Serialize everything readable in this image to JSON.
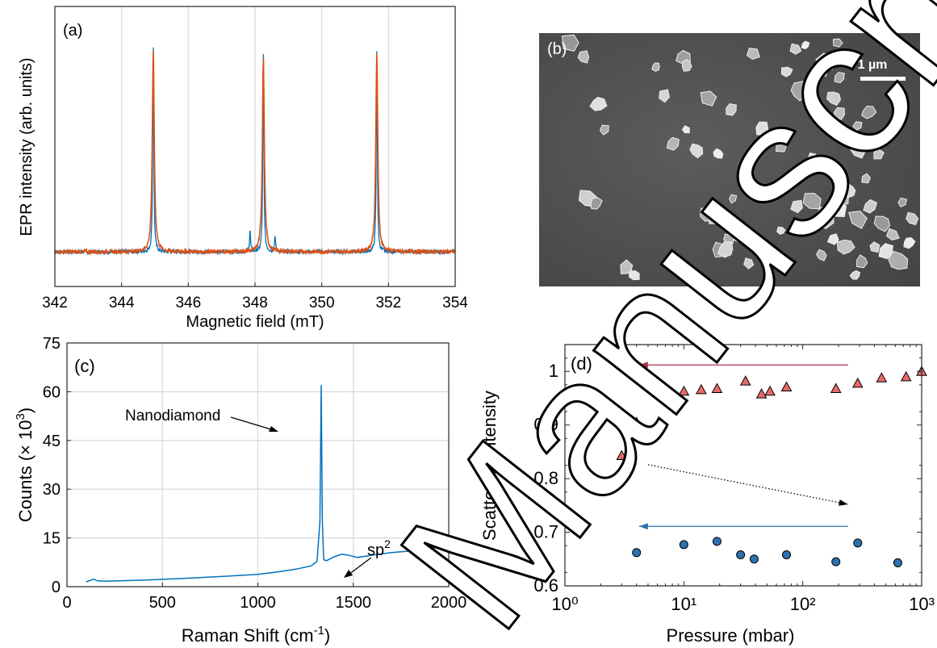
{
  "chart_data": [
    {
      "panel": "(a)",
      "type": "line",
      "title": "",
      "xlabel": "Magnetic field (mT)",
      "ylabel": "EPR intensity (arb. units)",
      "xlim": [
        342,
        354
      ],
      "xticks": [
        "342",
        "344",
        "346",
        "348",
        "350",
        "352",
        "354"
      ],
      "grid": "vertical",
      "series": [
        {
          "color": "#0072bd",
          "peaks": [
            {
              "x": 344.95,
              "y": 1.0
            },
            {
              "x": 347.85,
              "y": 0.11
            },
            {
              "x": 348.25,
              "y": 0.96
            },
            {
              "x": 348.6,
              "y": 0.08
            },
            {
              "x": 351.65,
              "y": 0.98
            }
          ]
        },
        {
          "color": "#d95319",
          "peaks": [
            {
              "x": 344.95,
              "y": 0.98
            },
            {
              "x": 348.25,
              "y": 0.94
            },
            {
              "x": 351.65,
              "y": 0.96
            }
          ]
        }
      ]
    },
    {
      "panel": "(c)",
      "type": "line",
      "title": "",
      "xlabel": "Raman Shift (cm⁻¹)",
      "ylabel": "Counts (× 10³)",
      "xlim": [
        0,
        2000
      ],
      "ylim": [
        0,
        75
      ],
      "xticks": [
        "0",
        "500",
        "1000",
        "1500",
        "2000"
      ],
      "yticks": [
        "0",
        "15",
        "30",
        "45",
        "60",
        "75"
      ],
      "grid": "on",
      "annotations": [
        "Nanodiamond",
        "sp²"
      ],
      "series": [
        {
          "color": "#0072bd",
          "x": [
            100,
            140,
            160,
            200,
            400,
            600,
            800,
            1000,
            1100,
            1200,
            1280,
            1310,
            1325,
            1332,
            1338,
            1345,
            1360,
            1400,
            1440,
            1480,
            1520,
            1600,
            1700,
            1800,
            1900,
            2000
          ],
          "y": [
            1.5,
            2.3,
            1.8,
            1.7,
            2.0,
            2.5,
            3.1,
            3.8,
            4.5,
            5.4,
            6.4,
            7.8,
            20,
            62,
            20,
            8.3,
            8.0,
            9.2,
            10.0,
            9.6,
            9.0,
            9.7,
            10.5,
            11.0,
            11.7,
            12.5
          ]
        }
      ]
    },
    {
      "panel": "(d)",
      "type": "scatter",
      "title": "",
      "xlabel": "Pressure (mbar)",
      "ylabel": "Scattering intensity",
      "xscale": "log",
      "xlim": [
        1,
        1000
      ],
      "ylim": [
        0.6,
        1.05
      ],
      "xticks": [
        "10⁰",
        "10¹",
        "10²",
        "10³"
      ],
      "yticks": [
        "0.6",
        "0.7",
        "0.8",
        "0.9",
        "1"
      ],
      "grid": "off",
      "series": [
        {
          "marker": "triangle",
          "color": "#e8696a",
          "x": [
            3,
            4,
            7.3,
            10,
            14,
            19,
            33,
            45,
            53,
            73,
            190,
            290,
            460,
            740,
            1000
          ],
          "y": [
            0.843,
            0.905,
            0.952,
            0.963,
            0.966,
            0.968,
            0.982,
            0.958,
            0.963,
            0.971,
            0.968,
            0.978,
            0.988,
            0.99,
            1.0
          ]
        },
        {
          "marker": "circle",
          "color": "#2d72b0",
          "x": [
            4,
            10,
            19,
            30,
            39,
            73,
            190,
            290,
            630
          ],
          "y": [
            0.662,
            0.677,
            0.683,
            0.658,
            0.65,
            0.658,
            0.645,
            0.68,
            0.643
          ]
        }
      ],
      "arrows": [
        {
          "color": "#b22e4c",
          "from": [
            240,
            1.012
          ],
          "to": [
            4.2,
            1.012
          ]
        },
        {
          "color": "#2d72b0",
          "from": [
            240,
            0.711
          ],
          "to": [
            4.2,
            0.711
          ]
        },
        {
          "color": "#000000",
          "style": "dotted",
          "from": [
            5,
            0.826
          ],
          "to": [
            240,
            0.752
          ]
        }
      ]
    }
  ],
  "panels": {
    "a": {
      "label": "(a)"
    },
    "b": {
      "label": "(b)",
      "scale_bar": "1 µm"
    },
    "c": {
      "label": "(c)"
    },
    "d": {
      "label": "(d)"
    }
  },
  "watermark": "Manuscript"
}
